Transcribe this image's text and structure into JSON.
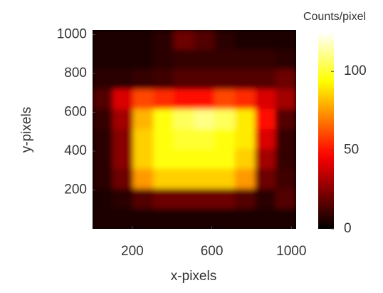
{
  "chart_data": {
    "type": "heatmap",
    "xlabel": "x-pixels",
    "ylabel": "y-pixels",
    "xlim": [
      0,
      1024
    ],
    "ylim": [
      0,
      1024
    ],
    "xticks": [
      200,
      600,
      1000
    ],
    "yticks": [
      200,
      400,
      600,
      800,
      1000
    ],
    "colormap": "hot",
    "colorbar_label": "Counts/pixel",
    "zlim": [
      0,
      125
    ],
    "zticks": [
      0,
      50,
      100
    ],
    "z": [
      [
        5,
        5,
        5,
        8,
        20,
        15,
        8,
        5,
        5,
        5
      ],
      [
        5,
        5,
        5,
        8,
        10,
        10,
        10,
        10,
        10,
        8
      ],
      [
        8,
        8,
        10,
        12,
        15,
        15,
        15,
        15,
        15,
        20
      ],
      [
        15,
        40,
        60,
        55,
        50,
        50,
        60,
        55,
        40,
        30
      ],
      [
        10,
        30,
        80,
        95,
        105,
        110,
        105,
        90,
        50,
        15
      ],
      [
        8,
        25,
        85,
        95,
        100,
        100,
        95,
        90,
        40,
        10
      ],
      [
        8,
        25,
        85,
        95,
        95,
        95,
        95,
        85,
        30,
        10
      ],
      [
        8,
        20,
        75,
        85,
        85,
        85,
        85,
        75,
        20,
        12
      ],
      [
        5,
        8,
        15,
        20,
        20,
        20,
        20,
        15,
        8,
        15
      ],
      [
        5,
        5,
        5,
        5,
        5,
        5,
        5,
        5,
        5,
        5
      ]
    ]
  }
}
